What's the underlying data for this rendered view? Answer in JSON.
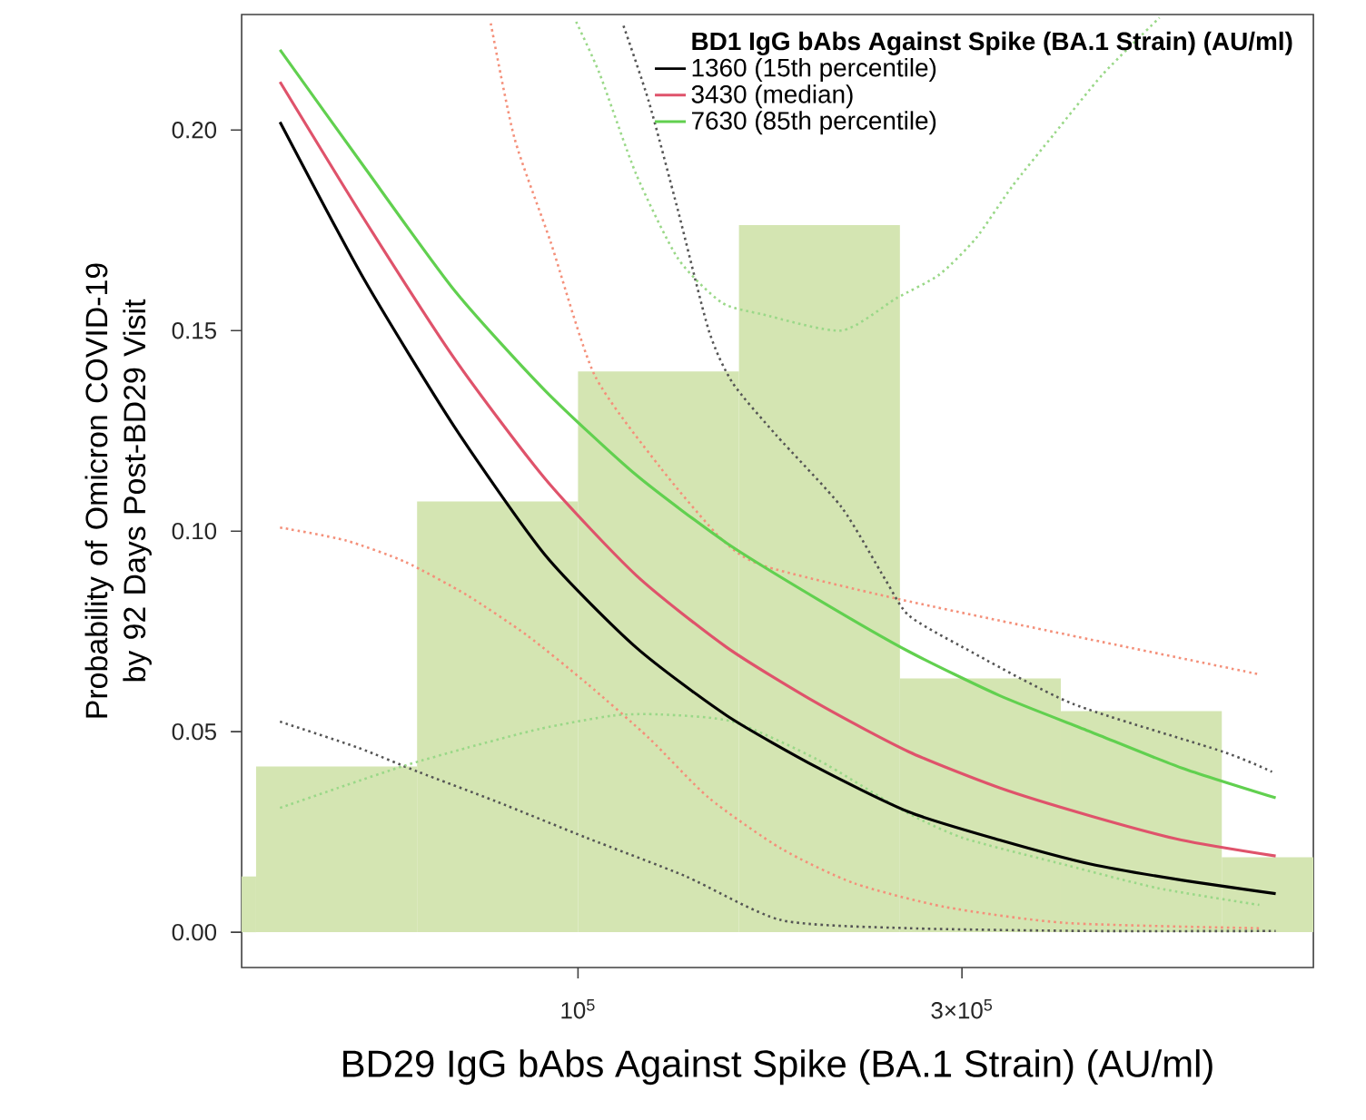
{
  "chart_data": {
    "type": "line",
    "xlabel": "BD29 IgG bAbs Against Spike (BA.1 Strain) (AU/ml)",
    "ylabel": "Probability of Omicron COVID-19 by 92 Days Post-BD29 Visit",
    "legend_title": "BD1 IgG bAbs Against Spike (BA.1 Strain) (AU/ml)",
    "legend": "top right",
    "log": "x",
    "xlim": [
      38200,
      820000
    ],
    "ylim": [
      -0.0088,
      0.2288
    ],
    "xticks": [
      {
        "value": 100000,
        "label": "10$^{5}$"
      },
      {
        "value": 300000,
        "label": "3×10$^{5}$"
      }
    ],
    "yticks": [
      {
        "value": 0,
        "label": "0.00"
      },
      {
        "value": 0.05,
        "label": "0.05"
      },
      {
        "value": 0.1,
        "label": "0.10"
      },
      {
        "value": 0.15,
        "label": "0.15"
      },
      {
        "value": 0.2,
        "label": "0.20"
      }
    ],
    "x": [
      42630,
      54150,
      70230,
      91070,
      118100,
      153100,
      198600,
      257600,
      334100,
      433300,
      561900,
      736200
    ],
    "series": [
      {
        "type": "histogram",
        "color": "#d4e5b2",
        "bins": [
          38200,
          39810,
          63100,
          100000,
          158500,
          251200,
          398100,
          631000,
          820000
        ],
        "values": [
          0.0139,
          0.0413,
          0.1074,
          0.1398,
          0.1763,
          0.0633,
          0.0551,
          0.0187
        ]
      },
      {
        "line_style": "dotted",
        "color": "#555555",
        "x": [
          113900,
          122500,
          133100,
          145400,
          155600,
          176200,
          212500,
          240800,
          257600,
          301100,
          411300,
          633300,
          728600
        ],
        "values": [
          0.226,
          0.207,
          0.18,
          0.15,
          0.137,
          0.124,
          0.106,
          0.088,
          0.079,
          0.071,
          0.057,
          0.045,
          0.04
        ]
      },
      {
        "line_style": "dotted",
        "color": "#555555",
        "x": [
          42630,
          53310,
          63290,
          79150,
          102600,
          135900,
          179000,
          257600,
          433300,
          736200
        ],
        "values": [
          0.0525,
          0.046,
          0.04,
          0.0326,
          0.0235,
          0.014,
          0.003,
          0.001,
          0.0003,
          0.0003
        ]
      },
      {
        "line_style": "dotted",
        "color": "#f4907a",
        "x": [
          77920,
          83370,
          92500,
          104800,
          126400,
          150800,
          169900,
          247100,
          404900,
          702600
        ],
        "values": [
          0.2266,
          0.198,
          0.172,
          0.139,
          0.116,
          0.098,
          0.0914,
          0.0833,
          0.0742,
          0.0643
        ]
      },
      {
        "line_style": "dotted",
        "color": "#f4907a",
        "x": [
          42630,
          51400,
          61040,
          72840,
          86450,
          102600,
          122500,
          145400,
          179000,
          220400,
          285800,
          404900,
          702600
        ],
        "values": [
          0.1009,
          0.0977,
          0.0923,
          0.084,
          0.074,
          0.062,
          0.0484,
          0.0335,
          0.0208,
          0.0122,
          0.0063,
          0.0023,
          0.001
        ]
      },
      {
        "line_style": "dotted",
        "color": "#9ad888",
        "x": [
          99470,
          106400,
          118100,
          133100,
          150800,
          169900,
          212500,
          248400,
          281400,
          312200,
          346500,
          390500,
          449300,
          527900
        ],
        "values": [
          0.227,
          0.214,
          0.189,
          0.168,
          0.157,
          0.154,
          0.15,
          0.158,
          0.164,
          0.173,
          0.186,
          0.199,
          0.214,
          0.228
        ]
      },
      {
        "line_style": "dotted",
        "color": "#9ad888",
        "x": [
          42630,
          51400,
          61040,
          72840,
          89670,
          110400,
          126400,
          155600,
          198600,
          253600,
          301100,
          404900,
          525200,
          702600
        ],
        "values": [
          0.031,
          0.0366,
          0.0416,
          0.046,
          0.0507,
          0.054,
          0.0543,
          0.0525,
          0.043,
          0.0303,
          0.0235,
          0.0167,
          0.011,
          0.0068
        ]
      },
      {
        "name": "1360 (15th percentile)",
        "color": "#000000",
        "values": [
          0.202,
          0.163,
          0.126,
          0.094,
          0.071,
          0.054,
          0.041,
          0.03,
          0.023,
          0.017,
          0.013,
          0.0096
        ]
      },
      {
        "name": "3430 (median)",
        "color": "#df536b",
        "values": [
          0.212,
          0.178,
          0.143,
          0.113,
          0.089,
          0.071,
          0.057,
          0.045,
          0.036,
          0.029,
          0.023,
          0.019
        ]
      },
      {
        "name": "7630 (85th percentile)",
        "color": "#61d04f",
        "values": [
          0.22,
          0.191,
          0.16,
          0.135,
          0.114,
          0.097,
          0.083,
          0.07,
          0.059,
          0.05,
          0.041,
          0.0335
        ]
      }
    ]
  }
}
